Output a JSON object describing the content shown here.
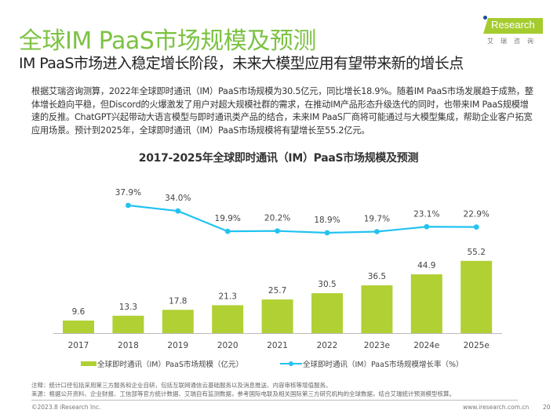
{
  "header": {
    "title": "全球IM PaaS市场规模及预测",
    "subtitle": "IM PaaS市场进入稳定增长阶段，未来大模型应用有望带来新的增长点"
  },
  "logo": {
    "brand": "Research",
    "cn": "艾瑞咨询"
  },
  "body_text": "根据艾瑞咨询测算，2022年全球即时通讯（IM）PaaS市场规模为30.5亿元，同比增长18.9%。随着IM PaaS市场发展趋于成熟，整体增长趋向平稳，但Discord的火爆激发了用户对超大规模社群的需求，在推动IM产品形态升级迭代的同时，也带来IM PaaS规模增速的反推。ChatGPT兴起带动大语言模型与即时通讯类产品的结合，未来IM PaaS厂商将可能通过与大模型集成，帮助企业客户拓宽应用场景。预计到2025年，全球即时通讯（IM）PaaS市场规模将有望增长至55.2亿元。",
  "colors": {
    "title_green": "#7cc242",
    "bar": "#b0d034",
    "line": "#23c3f0"
  },
  "chart_data": {
    "type": "bar+line",
    "title": "2017-2025年全球即时通讯（IM）PaaS市场规模及预测",
    "categories": [
      "2017",
      "2018",
      "2019",
      "2020",
      "2021",
      "2022",
      "2023e",
      "2024e",
      "2025e"
    ],
    "series": [
      {
        "name": "全球即时通讯（IM）PaaS市场规模（亿元）",
        "type": "bar",
        "values": [
          9.6,
          13.3,
          17.8,
          21.3,
          25.7,
          30.5,
          36.5,
          44.9,
          55.2
        ],
        "labels": [
          "9.6",
          "13.3",
          "17.8",
          "21.3",
          "25.7",
          "30.5",
          "36.5",
          "44.9",
          "55.2"
        ]
      },
      {
        "name": "全球即时通讯（IM）PaaS市场规模增长率（%）",
        "type": "line",
        "values": [
          37.9,
          34.0,
          19.9,
          20.2,
          18.9,
          19.7,
          23.1,
          22.9
        ],
        "x_start_index": 1,
        "labels": [
          "37.9%",
          "34.0%",
          "19.9%",
          "20.2%",
          "18.9%",
          "19.7%",
          "23.1%",
          "22.9%"
        ]
      }
    ],
    "xlabel": "",
    "ylabel": "",
    "grid": false,
    "legend": "bottom"
  },
  "footer": {
    "note": "注释：统计口径包括采用第三方服务和企业自研，包括互联网通信云基础服务以及消息推送、内容审核等增值服务。",
    "source": "来源：根据公开资料、企业财报、工信部等官方统计数据、艾瑞自有监测数据，参考国际电联及相关国际第三方研究机构的全球数据，结合艾瑞统计预测模型核算。",
    "copyright": "©2023.8 iResearch Inc.",
    "url": "www.iresearch.com.cn",
    "page": "20"
  }
}
